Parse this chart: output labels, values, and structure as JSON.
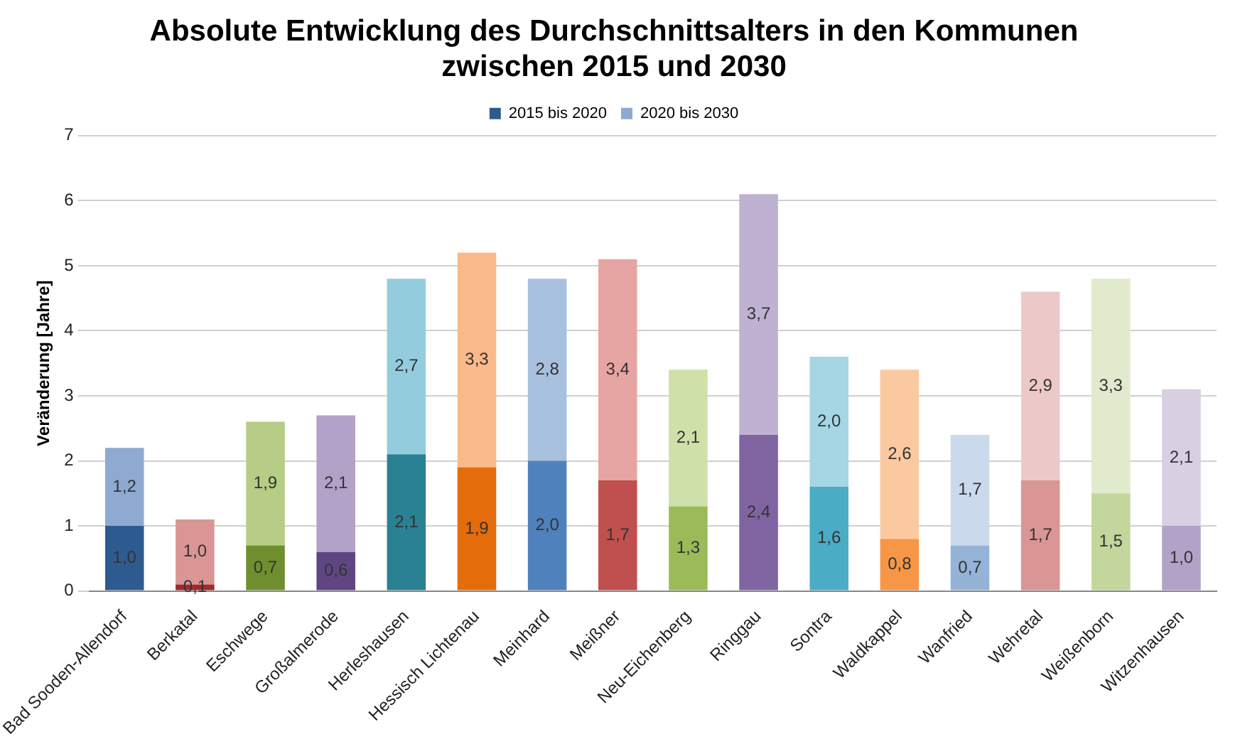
{
  "chart_data": {
    "type": "bar",
    "stacked": true,
    "title": [
      "Absolute Entwicklung des Durchschnittsalters in den Kommunen",
      "zwischen 2015 und 2030"
    ],
    "ylabel": "Veränderung [Jahre]",
    "categories": [
      "Bad Sooden-Allendorf",
      "Berkatal",
      "Eschwege",
      "Großalmerode",
      "Herleshausen",
      "Hessisch Lichtenau",
      "Meinhard",
      "Meißner",
      "Neu-Eichenberg",
      "Ringgau",
      "Sontra",
      "Waldkappel",
      "Wanfried",
      "Wehretal",
      "Weißenborn",
      "Witzenhausen"
    ],
    "series": [
      {
        "name": "2015 bis 2020",
        "values": [
          1.0,
          0.1,
          0.7,
          0.6,
          2.1,
          1.9,
          2.0,
          1.7,
          1.3,
          2.4,
          1.6,
          0.8,
          0.7,
          1.7,
          1.5,
          1.0
        ],
        "value_labels": [
          "1,0",
          "0,1",
          "0,7",
          "0,6",
          "2,1",
          "1,9",
          "2,0",
          "1,7",
          "1,3",
          "2,4",
          "1,6",
          "0,8",
          "0,7",
          "1,7",
          "1,5",
          "1,0"
        ],
        "colors": [
          "#2e5b8f",
          "#a3292c",
          "#6f8f2e",
          "#5f4683",
          "#2a8194",
          "#e46c0a",
          "#4f81bd",
          "#c0504d",
          "#9bbb59",
          "#8064a2",
          "#4bacc6",
          "#f79646",
          "#95b3d7",
          "#d99694",
          "#c3d69b",
          "#b3a2c7"
        ]
      },
      {
        "name": "2020 bis 2030",
        "values": [
          1.2,
          1.0,
          1.9,
          2.1,
          2.7,
          3.3,
          2.8,
          3.4,
          2.1,
          3.7,
          2.0,
          2.6,
          1.7,
          2.9,
          3.3,
          2.1
        ],
        "value_labels": [
          "1,2",
          "1,0",
          "1,9",
          "2,1",
          "2,7",
          "3,3",
          "2,8",
          "3,4",
          "2,1",
          "3,7",
          "2,0",
          "2,6",
          "1,7",
          "2,9",
          "3,3",
          "2,1"
        ],
        "colors": [
          "#8eaad0",
          "#d99694",
          "#b7cc84",
          "#b3a2c7",
          "#93cddd",
          "#f9b98a",
          "#a7c0de",
          "#e6a5a3",
          "#cfe0a9",
          "#bfb1d1",
          "#a5d6e3",
          "#fbc9a0",
          "#cad9eb",
          "#ecc9c8",
          "#e1eacd",
          "#d8cfe3"
        ]
      }
    ],
    "ylim": [
      0,
      7
    ],
    "yticks": [
      0,
      1,
      2,
      3,
      4,
      5,
      6,
      7
    ],
    "grid": "y",
    "legend": "top"
  }
}
